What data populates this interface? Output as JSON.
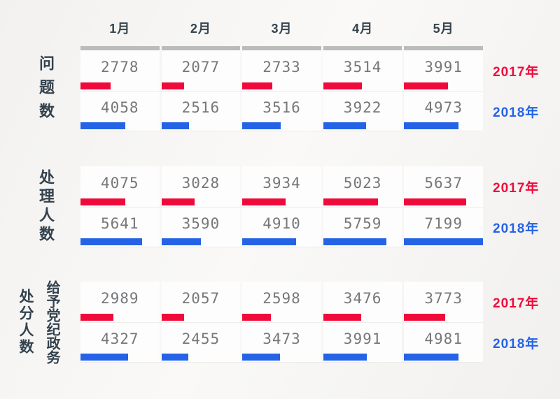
{
  "style": {
    "red": "#ef0a3b",
    "blue": "#2563e6",
    "header_rule_color": "#b9bcb8",
    "number_color": "#757779",
    "label_color": "#33424e"
  },
  "scale_max": 7199,
  "chart_data": [
    {
      "type": "bar",
      "title": "问题数",
      "categories": [
        "1月",
        "2月",
        "3月",
        "4月",
        "5月"
      ],
      "series": [
        {
          "name": "2017年",
          "color": "#ef0a3b",
          "values": [
            2778,
            2077,
            2733,
            3514,
            3991
          ]
        },
        {
          "name": "2018年",
          "color": "#2563e6",
          "values": [
            4058,
            2516,
            3516,
            3922,
            4973
          ]
        }
      ],
      "xlim": [
        0,
        7199
      ],
      "legend_position": "right"
    },
    {
      "type": "bar",
      "title": "处理人数",
      "categories": [
        "1月",
        "2月",
        "3月",
        "4月",
        "5月"
      ],
      "series": [
        {
          "name": "2017年",
          "color": "#ef0a3b",
          "values": [
            4075,
            3028,
            3934,
            5023,
            5637
          ]
        },
        {
          "name": "2018年",
          "color": "#2563e6",
          "values": [
            5641,
            3590,
            4910,
            5759,
            7199
          ]
        }
      ],
      "xlim": [
        0,
        7199
      ],
      "legend_position": "right"
    },
    {
      "type": "bar",
      "title": "处分人数",
      "subtitle": "给予党纪政务",
      "categories": [
        "1月",
        "2月",
        "3月",
        "4月",
        "5月"
      ],
      "series": [
        {
          "name": "2017年",
          "color": "#ef0a3b",
          "values": [
            2989,
            2057,
            2598,
            3476,
            3773
          ]
        },
        {
          "name": "2018年",
          "color": "#2563e6",
          "values": [
            4327,
            2455,
            3473,
            3991,
            4981
          ]
        }
      ],
      "xlim": [
        0,
        7199
      ],
      "legend_position": "right"
    }
  ]
}
